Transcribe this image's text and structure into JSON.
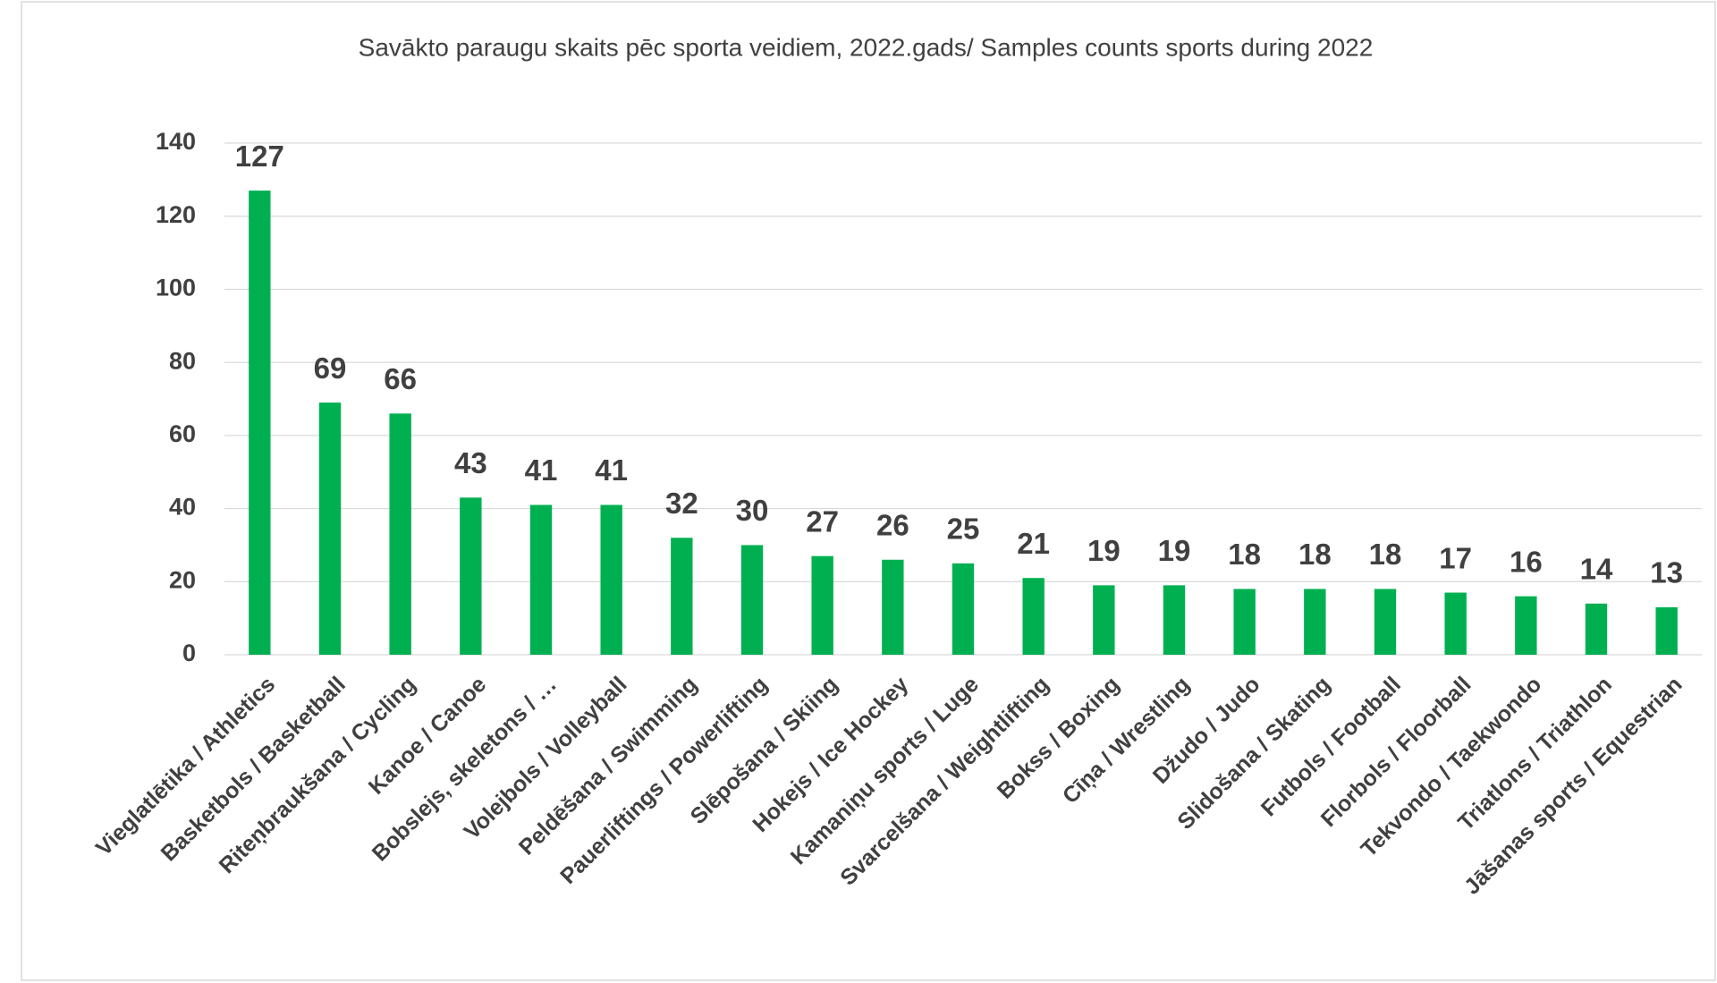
{
  "chart_data": {
    "type": "bar",
    "title": "Savākto paraugu skaits pēc sporta veidiem, 2022.gads/ Samples counts sports during 2022",
    "categories": [
      "Vieglatlētika / Athletics",
      "Basketbols / Basketball",
      "Riteņbraukšana / Cycling",
      "Kanoe / Canoe",
      "Bobslejs, skeletons / …",
      "Volejbols / Volleyball",
      "Peldēšana / Swimming",
      "Pauerliftings / Powerlifting",
      "Slēpošana / Skiing",
      "Hokejs / Ice Hockey",
      "Kamaniņu sports / Luge",
      "Svarcelšana / Weightlifting",
      "Bokss / Boxing",
      "Cīņa / Wrestling",
      "Džudo / Judo",
      "Slidošana / Skating",
      "Futbols / Football",
      "Florbols / Floorball",
      "Tekvondo / Taekwondo",
      "Triatlons / Triathlon",
      "Jāšanas sports / Equestrian"
    ],
    "values": [
      127,
      69,
      66,
      43,
      41,
      41,
      32,
      30,
      27,
      26,
      25,
      21,
      19,
      19,
      18,
      18,
      18,
      17,
      16,
      14,
      13
    ],
    "color": "#00b050",
    "ylim": [
      0,
      140
    ],
    "yticks": [
      0,
      20,
      40,
      60,
      80,
      100,
      120,
      140
    ],
    "grid": true
  }
}
